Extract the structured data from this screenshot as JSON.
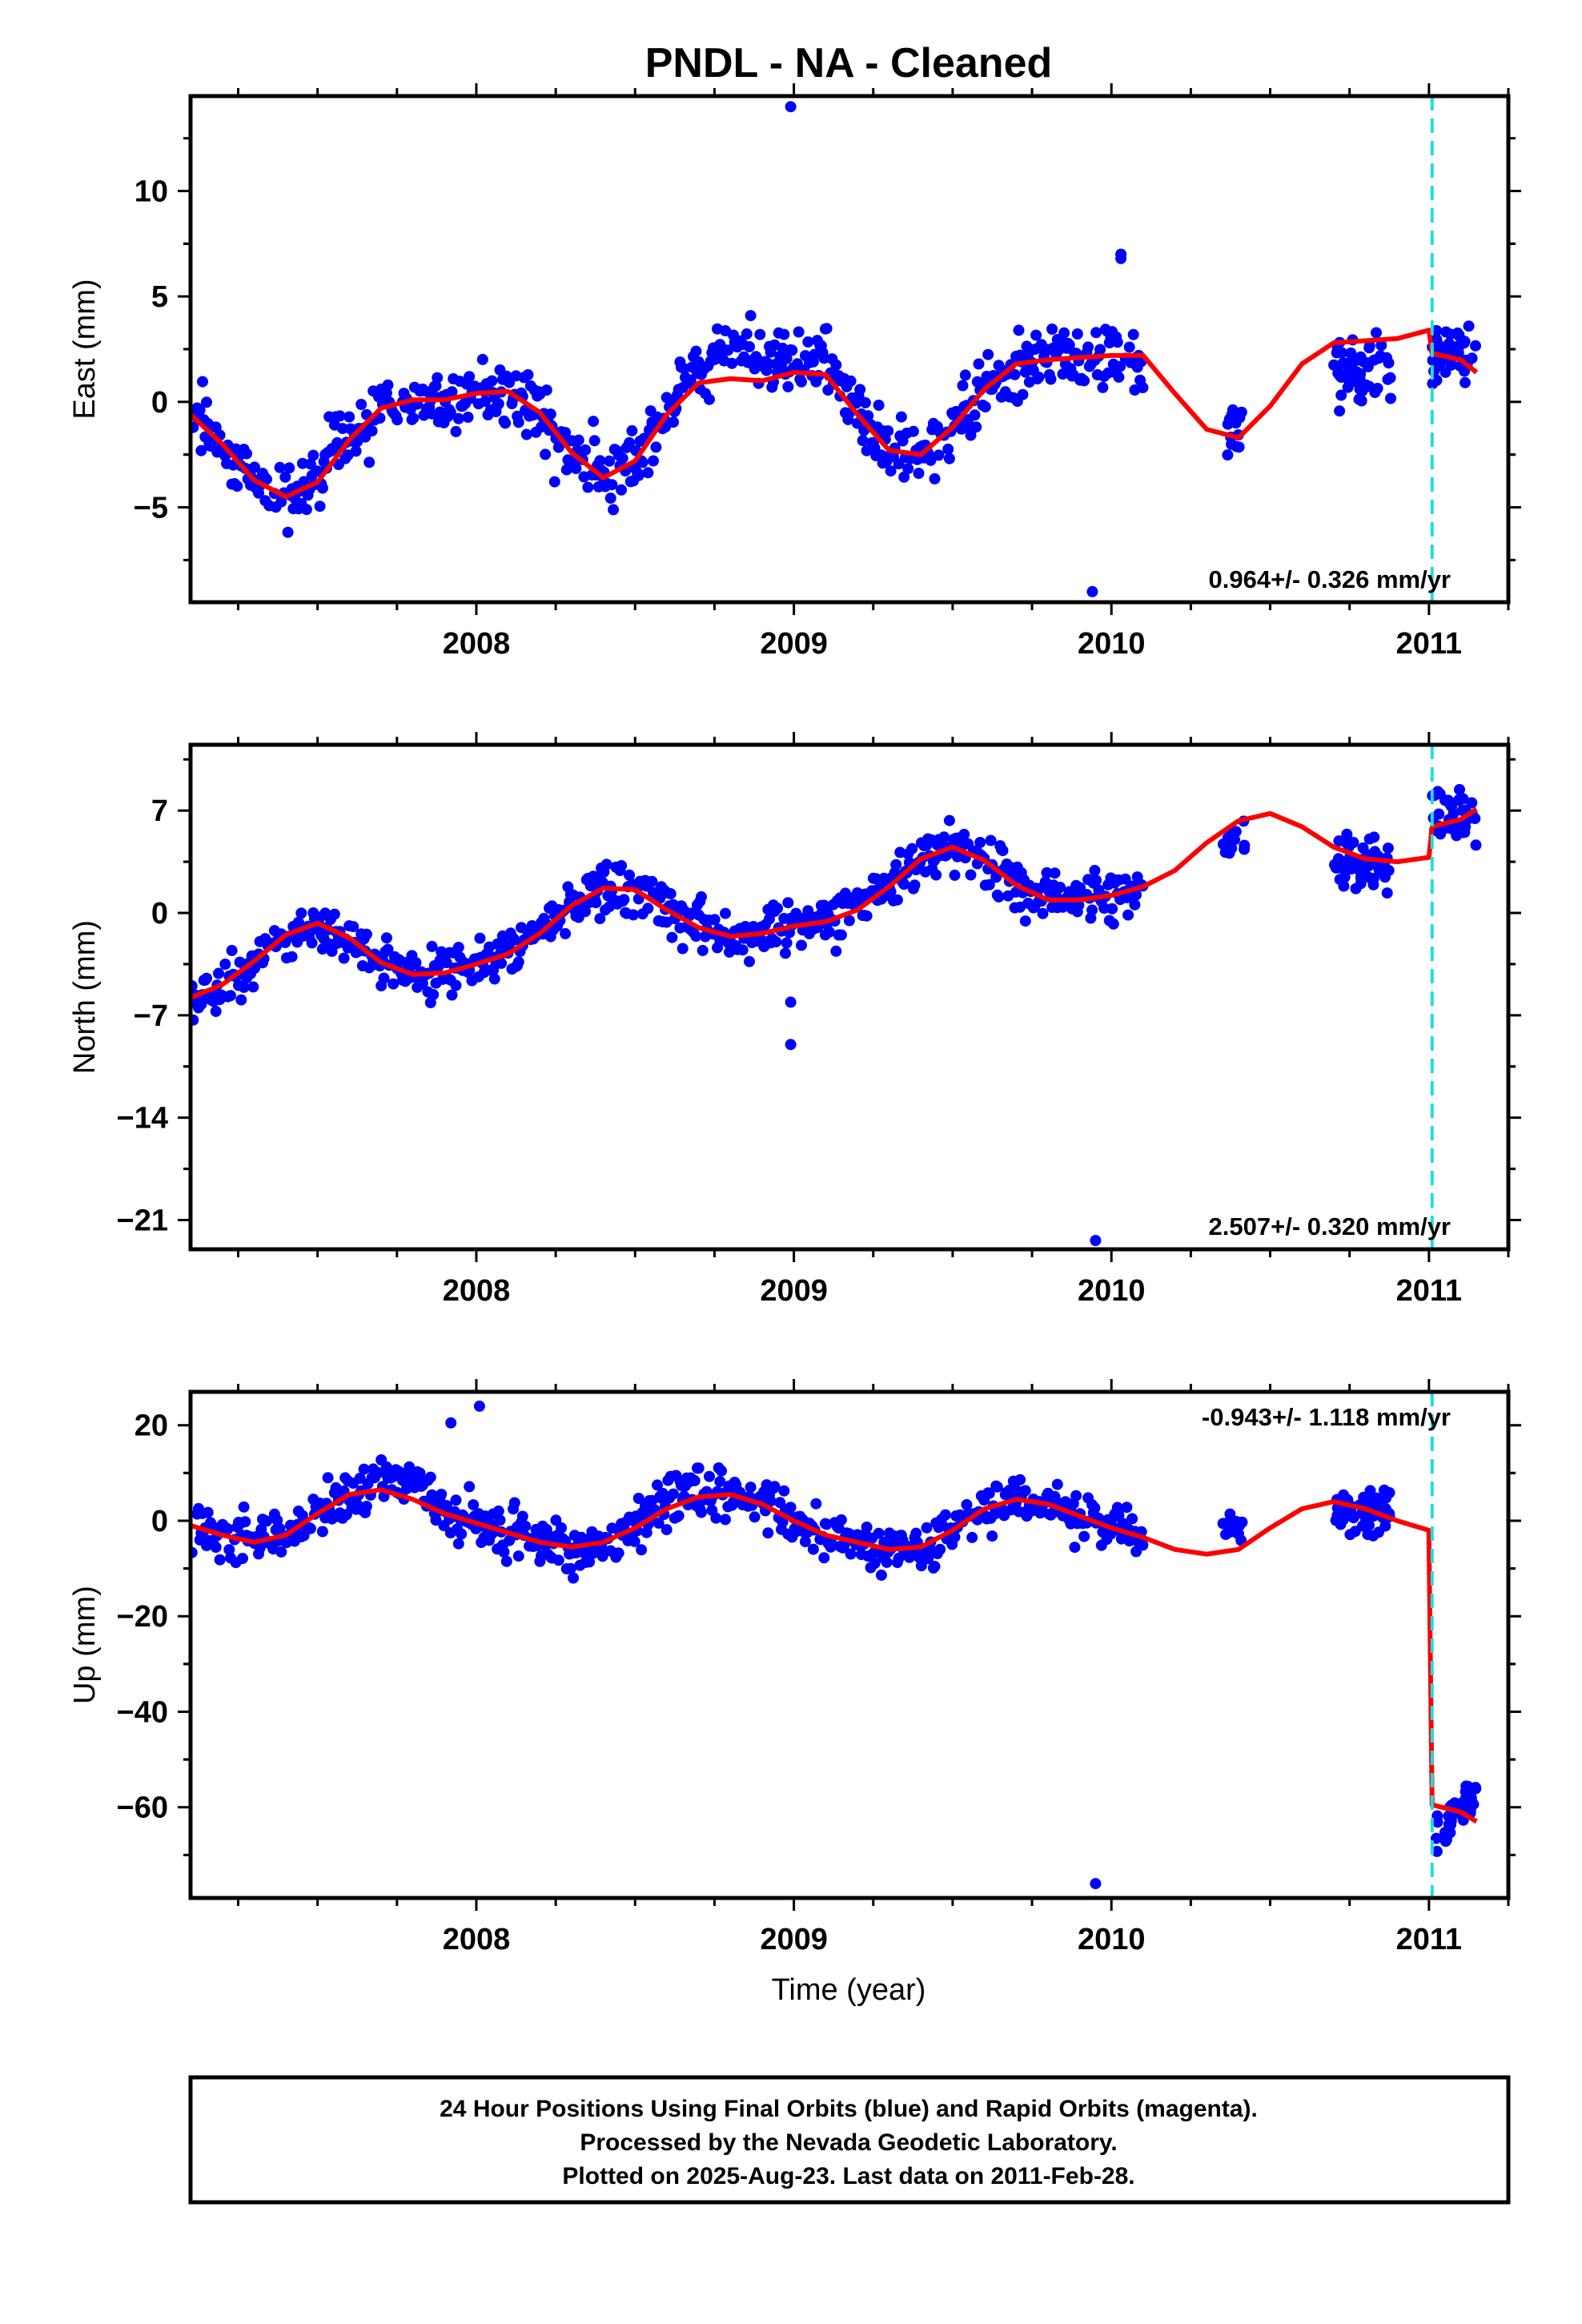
{
  "title": "PNDL  - NA - Cleaned",
  "xlabel": "Time (year)",
  "footer": [
    "24 Hour Positions Using Final Orbits (blue) and Rapid Orbits (magenta).",
    "Processed by the Nevada Geodetic Laboratory.",
    "Plotted on 2025-Aug-23. Last data on 2011-Feb-28."
  ],
  "colors": {
    "data": "#0000ff",
    "model": "#ff0000",
    "event": "#22dddd",
    "axes": "#000000"
  },
  "chart_data": [
    {
      "type": "scatter",
      "name": "east",
      "ylabel": "East (mm)",
      "rate_label": "0.964+/- 0.326 mm/yr",
      "rate_position": "bottom-right",
      "xlim": [
        2007.1,
        2011.25
      ],
      "ylim": [
        -9.5,
        14.5
      ],
      "xticks": [
        2008,
        2009,
        2010,
        2011
      ],
      "yticks": [
        -5,
        0,
        5,
        10
      ],
      "ytick_labels": [
        "−5",
        "0",
        "5",
        "10"
      ],
      "event_line_x": 2011.01,
      "model_curve": {
        "x": [
          2007.1,
          2007.2,
          2007.3,
          2007.4,
          2007.5,
          2007.6,
          2007.7,
          2007.8,
          2007.9,
          2008.0,
          2008.1,
          2008.2,
          2008.3,
          2008.4,
          2008.5,
          2008.6,
          2008.7,
          2008.8,
          2008.9,
          2009.0,
          2009.1,
          2009.2,
          2009.3,
          2009.4,
          2009.5,
          2009.6,
          2009.7,
          2009.8,
          2009.9,
          2010.0,
          2010.1,
          2010.2,
          2010.3,
          2010.4,
          2010.5,
          2010.6,
          2010.7,
          2010.8,
          2010.9,
          2011.0,
          2011.01,
          2011.1,
          2011.15
        ],
        "y": [
          -0.6,
          -2.0,
          -3.7,
          -4.5,
          -3.8,
          -1.8,
          -0.3,
          0.1,
          0.1,
          0.4,
          0.5,
          -0.5,
          -2.4,
          -3.6,
          -2.8,
          -0.6,
          0.9,
          1.1,
          1.0,
          1.4,
          1.3,
          -0.6,
          -2.3,
          -2.5,
          -1.2,
          0.6,
          1.8,
          2.0,
          2.1,
          2.2,
          2.2,
          0.4,
          -1.3,
          -1.7,
          -0.2,
          1.8,
          2.8,
          2.9,
          3.0,
          3.4,
          2.3,
          2.0,
          1.4
        ]
      },
      "outliers": {
        "x": [
          2008.99,
          2009.94,
          2010.03,
          2010.03
        ],
        "y": [
          14.0,
          -9.0,
          7.0,
          6.8
        ]
      },
      "anchors": {
        "x": [
          2007.1,
          2007.2,
          2007.3,
          2007.4,
          2007.5,
          2007.6,
          2007.7,
          2007.8,
          2007.9,
          2008.0,
          2008.1,
          2008.2,
          2008.3,
          2008.4,
          2008.5,
          2008.6,
          2008.7,
          2008.8,
          2008.9,
          2009.0,
          2009.1,
          2009.2,
          2009.3,
          2009.4,
          2009.5,
          2009.6,
          2009.7,
          2009.8,
          2009.9,
          2010.0,
          2010.1
        ],
        "y": [
          -0.6,
          -2.0,
          -3.7,
          -4.5,
          -3.8,
          -1.8,
          -0.3,
          0.1,
          0.1,
          0.4,
          0.5,
          -0.5,
          -2.4,
          -3.6,
          -2.8,
          -0.6,
          1.9,
          2.6,
          2.2,
          2.0,
          2.0,
          -0.6,
          -2.3,
          -2.5,
          -1.2,
          0.6,
          1.8,
          2.0,
          1.9,
          2.0,
          2.0
        ],
        "spread": 1.1
      },
      "clusters": [
        {
          "x0": 2010.35,
          "x1": 2010.41,
          "y": -1.2,
          "spread": 1.0,
          "n": 14
        },
        {
          "x0": 2010.7,
          "x1": 2010.88,
          "y": 1.6,
          "spread": 1.1,
          "n": 55
        },
        {
          "x0": 2011.01,
          "x1": 2011.15,
          "y": 2.1,
          "spread": 1.2,
          "n": 40
        }
      ]
    },
    {
      "type": "scatter",
      "name": "north",
      "ylabel": "North (mm)",
      "rate_label": "2.507+/- 0.320 mm/yr",
      "rate_position": "bottom-right",
      "xlim": [
        2007.1,
        2011.25
      ],
      "ylim": [
        -23.0,
        11.5
      ],
      "xticks": [
        2008,
        2009,
        2010,
        2011
      ],
      "yticks": [
        -21,
        -14,
        -7,
        0,
        7
      ],
      "ytick_labels": [
        "−21",
        "−14",
        "−7",
        "0",
        "7"
      ],
      "event_line_x": 2011.01,
      "model_curve": {
        "x": [
          2007.1,
          2007.2,
          2007.3,
          2007.4,
          2007.5,
          2007.6,
          2007.7,
          2007.8,
          2007.9,
          2008.0,
          2008.1,
          2008.2,
          2008.3,
          2008.4,
          2008.5,
          2008.6,
          2008.7,
          2008.8,
          2008.9,
          2009.0,
          2009.1,
          2009.2,
          2009.3,
          2009.4,
          2009.5,
          2009.6,
          2009.7,
          2009.8,
          2009.9,
          2010.0,
          2010.1,
          2010.2,
          2010.3,
          2010.4,
          2010.5,
          2010.6,
          2010.7,
          2010.8,
          2010.9,
          2011.0,
          2011.01,
          2011.1,
          2011.15
        ],
        "y": [
          -5.8,
          -4.9,
          -3.3,
          -1.5,
          -0.7,
          -1.7,
          -3.4,
          -4.2,
          -4.1,
          -3.5,
          -2.8,
          -1.4,
          0.5,
          1.7,
          1.6,
          0.2,
          -1.0,
          -1.6,
          -1.4,
          -0.9,
          -0.6,
          0.2,
          1.8,
          3.7,
          4.5,
          3.6,
          1.9,
          0.9,
          0.9,
          1.2,
          1.8,
          2.9,
          4.8,
          6.3,
          6.8,
          5.9,
          4.5,
          3.7,
          3.5,
          3.8,
          5.9,
          6.4,
          7.1
        ]
      },
      "outliers": {
        "x": [
          2008.99,
          2008.99,
          2009.95
        ],
        "y": [
          -6.1,
          -9.0,
          -22.4
        ]
      },
      "anchors": {
        "x": [
          2007.1,
          2007.2,
          2007.3,
          2007.4,
          2007.5,
          2007.6,
          2007.7,
          2007.8,
          2007.9,
          2008.0,
          2008.1,
          2008.2,
          2008.3,
          2008.4,
          2008.5,
          2008.6,
          2008.7,
          2008.8,
          2008.9,
          2009.0,
          2009.1,
          2009.2,
          2009.3,
          2009.4,
          2009.5,
          2009.6,
          2009.7,
          2009.8,
          2009.9,
          2010.0,
          2010.1
        ],
        "y": [
          -5.8,
          -4.9,
          -3.3,
          -1.5,
          -0.7,
          -1.7,
          -3.4,
          -4.2,
          -4.1,
          -3.5,
          -2.8,
          -1.4,
          0.5,
          1.7,
          1.6,
          0.2,
          -1.0,
          -1.6,
          -1.4,
          -0.9,
          -0.6,
          0.2,
          1.8,
          3.7,
          4.5,
          3.6,
          1.9,
          0.9,
          0.9,
          1.2,
          1.8
        ],
        "spread": 1.2
      },
      "clusters": [
        {
          "x0": 2010.35,
          "x1": 2010.42,
          "y": 4.6,
          "spread": 0.9,
          "n": 14
        },
        {
          "x0": 2010.7,
          "x1": 2010.88,
          "y": 3.3,
          "spread": 1.2,
          "n": 55
        },
        {
          "x0": 2011.01,
          "x1": 2011.15,
          "y": 6.6,
          "spread": 1.3,
          "n": 40
        }
      ]
    },
    {
      "type": "scatter",
      "name": "up",
      "ylabel": "Up (mm)",
      "rate_label": "-0.943+/- 1.118 mm/yr",
      "rate_position": "top-right",
      "xlim": [
        2007.1,
        2011.25
      ],
      "ylim": [
        -79.0,
        27.0
      ],
      "xticks": [
        2008,
        2009,
        2010,
        2011
      ],
      "yticks": [
        -60,
        -40,
        -20,
        0,
        20
      ],
      "ytick_labels": [
        "−60",
        "−40",
        "−20",
        "0",
        "20"
      ],
      "event_line_x": 2011.01,
      "model_curve": {
        "x": [
          2007.1,
          2007.2,
          2007.3,
          2007.4,
          2007.5,
          2007.6,
          2007.7,
          2007.8,
          2007.9,
          2008.0,
          2008.1,
          2008.2,
          2008.3,
          2008.4,
          2008.5,
          2008.6,
          2008.7,
          2008.8,
          2008.9,
          2009.0,
          2009.1,
          2009.2,
          2009.3,
          2009.4,
          2009.5,
          2009.6,
          2009.7,
          2009.8,
          2009.9,
          2010.0,
          2010.1,
          2010.2,
          2010.3,
          2010.4,
          2010.5,
          2010.6,
          2010.7,
          2010.8,
          2010.9,
          2011.0,
          2011.0,
          2011.01,
          2011.1,
          2011.15
        ],
        "y": [
          -1.0,
          -3.0,
          -4.5,
          -3.0,
          1.5,
          5.5,
          6.5,
          4.5,
          1.5,
          -0.5,
          -2.5,
          -4.5,
          -5.5,
          -4.5,
          -1.5,
          2.5,
          5.0,
          5.5,
          3.5,
          0.0,
          -3.0,
          -4.5,
          -6.0,
          -5.5,
          -2.0,
          2.5,
          4.5,
          3.5,
          1.0,
          -1.5,
          -3.5,
          -6.0,
          -7.0,
          -6.0,
          -1.5,
          2.5,
          4.0,
          2.5,
          0.0,
          -2.0,
          -3.0,
          -59.5,
          -61.0,
          -63.0
        ]
      },
      "outliers": {
        "x": [
          2007.92,
          2008.01,
          2009.95
        ],
        "y": [
          20.5,
          24.0,
          -76.0
        ]
      },
      "anchors": {
        "x": [
          2007.1,
          2007.2,
          2007.3,
          2007.4,
          2007.5,
          2007.6,
          2007.7,
          2007.8,
          2007.9,
          2008.0,
          2008.1,
          2008.2,
          2008.3,
          2008.4,
          2008.5,
          2008.6,
          2008.7,
          2008.8,
          2008.9,
          2009.0,
          2009.1,
          2009.2,
          2009.3,
          2009.4,
          2009.5,
          2009.6,
          2009.7,
          2009.8,
          2009.9,
          2010.0,
          2010.1
        ],
        "y": [
          -1.0,
          -3.0,
          -4.5,
          -3.0,
          1.5,
          5.5,
          8.0,
          9.0,
          1.5,
          -0.5,
          -2.5,
          -4.5,
          -5.5,
          -4.5,
          -1.5,
          4.5,
          6.5,
          5.5,
          3.5,
          0.0,
          -3.0,
          -4.5,
          -6.0,
          -5.5,
          -2.0,
          2.5,
          4.5,
          3.5,
          1.5,
          -1.0,
          -3.0
        ],
        "spread": 3.6
      },
      "clusters": [
        {
          "x0": 2010.35,
          "x1": 2010.42,
          "y": -1.0,
          "spread": 2.5,
          "n": 14
        },
        {
          "x0": 2010.7,
          "x1": 2010.88,
          "y": 2.0,
          "spread": 3.0,
          "n": 55
        },
        {
          "x0": 2011.01,
          "x1": 2011.15,
          "y": -63.0,
          "spread": 3.5,
          "n": 40
        }
      ]
    }
  ]
}
